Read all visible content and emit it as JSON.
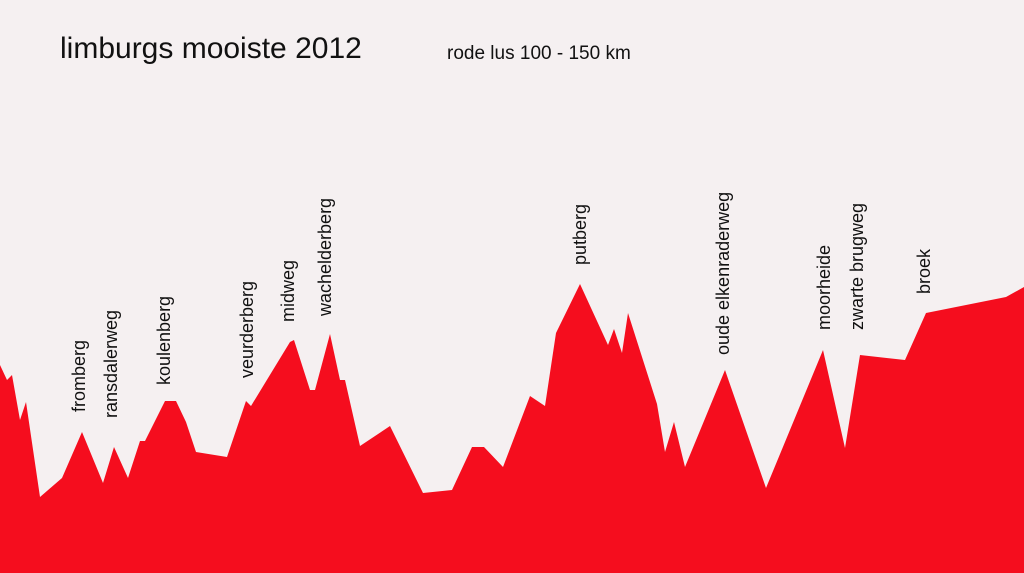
{
  "header": {
    "title": "limburgs mooiste 2012",
    "subtitle": "rode lus  100 - 150 km"
  },
  "climbs": [
    "fromberg",
    "ransdalerweg",
    "koulenberg",
    "veurderberg",
    "midweg",
    "wachelderberg",
    "putberg",
    "oude elkenraderweg",
    "moorheide",
    "zwarte brugweg",
    "broek"
  ]
}
